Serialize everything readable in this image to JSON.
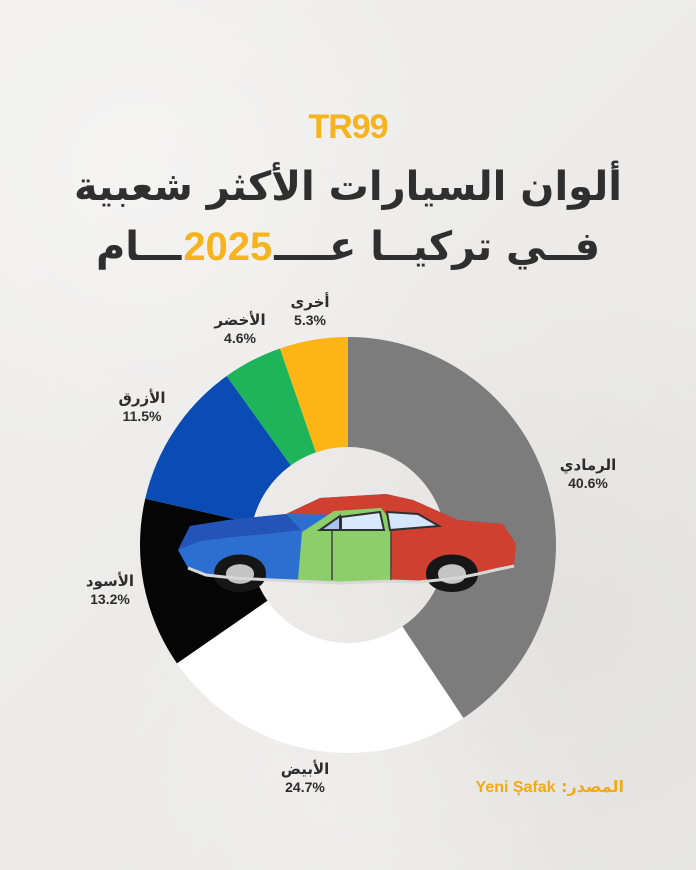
{
  "brand": {
    "logo_text": "TR99",
    "accent_color": "#f5b31e"
  },
  "title": {
    "line1": "ألوان السيارات الأكثر شعبية",
    "line2_prefix": "فــي تركيــا عــــ",
    "line2_year": "2025",
    "line2_suffix": "ـــام"
  },
  "source": {
    "label": "المصدر:",
    "name": "Yeni Şafak"
  },
  "chart_data": {
    "type": "pie",
    "title": "ألوان السيارات الأكثر شعبية في تركيا عام 2025",
    "series": [
      {
        "labels": [
          "الرمادي",
          "الأبيض",
          "الأسود",
          "الأزرق",
          "الأخضر",
          "أخرى"
        ],
        "values": [
          40.6,
          24.7,
          13.2,
          11.5,
          4.6,
          5.3
        ],
        "display_values": [
          "40.6%",
          "24.7%",
          "13.2%",
          "11.5%",
          "4.6%",
          "5.3%"
        ],
        "colors": [
          "#7c7c7c",
          "#ffffff",
          "#050505",
          "#0b4bb4",
          "#1db45a",
          "#fdb515"
        ]
      }
    ]
  },
  "center_image": {
    "icon": "multicolor-car-icon"
  }
}
